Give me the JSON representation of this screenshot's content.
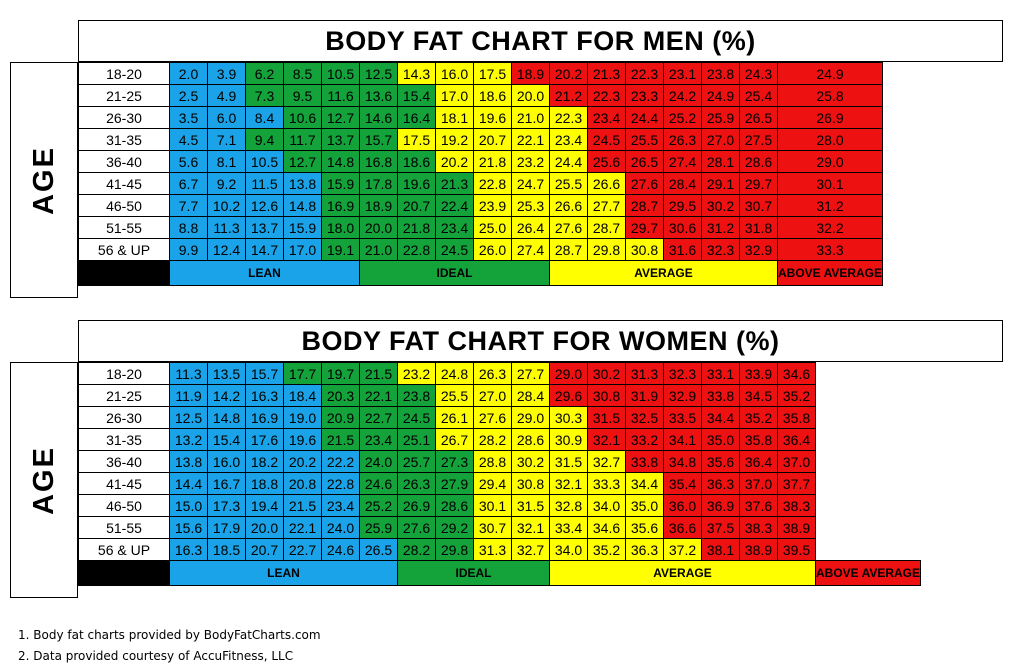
{
  "colors": {
    "lean": "#1aa3e8",
    "ideal": "#14a23a",
    "average": "#ffff00",
    "above_average": "#ee1111"
  },
  "charts": [
    {
      "title": "BODY FAT CHART FOR MEN (%)",
      "age_label": "AGE",
      "categories": [
        {
          "label": "LEAN",
          "span": 5,
          "key": "lean"
        },
        {
          "label": "IDEAL",
          "span": 5,
          "key": "ideal"
        },
        {
          "label": "AVERAGE",
          "span": 6,
          "key": "average"
        },
        {
          "label": "ABOVE AVERAGE",
          "span": 5,
          "key": "above_average"
        }
      ],
      "rows": [
        {
          "age": "18-20",
          "bounds": [
            2,
            6,
            9,
            11
          ],
          "values": [
            "2.0",
            "3.9",
            "6.2",
            "8.5",
            "10.5",
            "12.5",
            "14.3",
            "16.0",
            "17.5",
            "18.9",
            "20.2",
            "21.3",
            "22.3",
            "23.1",
            "23.8",
            "24.3",
            "24.9"
          ]
        },
        {
          "age": "21-25",
          "bounds": [
            2,
            7,
            10,
            11
          ],
          "values": [
            "2.5",
            "4.9",
            "7.3",
            "9.5",
            "11.6",
            "13.6",
            "15.4",
            "17.0",
            "18.6",
            "20.0",
            "21.2",
            "22.3",
            "23.3",
            "24.2",
            "24.9",
            "25.4",
            "25.8"
          ]
        },
        {
          "age": "26-30",
          "bounds": [
            3,
            7,
            11,
            11
          ],
          "values": [
            "3.5",
            "6.0",
            "8.4",
            "10.6",
            "12.7",
            "14.6",
            "16.4",
            "18.1",
            "19.6",
            "21.0",
            "22.3",
            "23.4",
            "24.4",
            "25.2",
            "25.9",
            "26.5",
            "26.9"
          ]
        },
        {
          "age": "31-35",
          "bounds": [
            2,
            6,
            11,
            11
          ],
          "values": [
            "4.5",
            "7.1",
            "9.4",
            "11.7",
            "13.7",
            "15.7",
            "17.5",
            "19.2",
            "20.7",
            "22.1",
            "23.4",
            "24.5",
            "25.5",
            "26.3",
            "27.0",
            "27.5",
            "28.0"
          ]
        },
        {
          "age": "36-40",
          "bounds": [
            3,
            7,
            11,
            11
          ],
          "values": [
            "5.6",
            "8.1",
            "10.5",
            "12.7",
            "14.8",
            "16.8",
            "18.6",
            "20.2",
            "21.8",
            "23.2",
            "24.4",
            "25.6",
            "26.5",
            "27.4",
            "28.1",
            "28.6",
            "29.0"
          ]
        },
        {
          "age": "41-45",
          "bounds": [
            4,
            8,
            12,
            12
          ],
          "values": [
            "6.7",
            "9.2",
            "11.5",
            "13.8",
            "15.9",
            "17.8",
            "19.6",
            "21.3",
            "22.8",
            "24.7",
            "25.5",
            "26.6",
            "27.6",
            "28.4",
            "29.1",
            "29.7",
            "30.1"
          ]
        },
        {
          "age": "46-50",
          "bounds": [
            4,
            8,
            12,
            12
          ],
          "values": [
            "7.7",
            "10.2",
            "12.6",
            "14.8",
            "16.9",
            "18.9",
            "20.7",
            "22.4",
            "23.9",
            "25.3",
            "26.6",
            "27.7",
            "28.7",
            "29.5",
            "30.2",
            "30.7",
            "31.2"
          ]
        },
        {
          "age": "51-55",
          "bounds": [
            4,
            8,
            12,
            12
          ],
          "values": [
            "8.8",
            "11.3",
            "13.7",
            "15.9",
            "18.0",
            "20.0",
            "21.8",
            "23.4",
            "25.0",
            "26.4",
            "27.6",
            "28.7",
            "29.7",
            "30.6",
            "31.2",
            "31.8",
            "32.2"
          ]
        },
        {
          "age": "56 & UP",
          "bounds": [
            4,
            8,
            13,
            13
          ],
          "values": [
            "9.9",
            "12.4",
            "14.7",
            "17.0",
            "19.1",
            "21.0",
            "22.8",
            "24.5",
            "26.0",
            "27.4",
            "28.7",
            "29.8",
            "30.8",
            "31.6",
            "32.3",
            "32.9",
            "33.3"
          ]
        }
      ]
    },
    {
      "title": "BODY FAT CHART FOR WOMEN (%)",
      "age_label": "AGE",
      "categories": [
        {
          "label": "LEAN",
          "span": 6,
          "key": "lean"
        },
        {
          "label": "IDEAL",
          "span": 4,
          "key": "ideal"
        },
        {
          "label": "AVERAGE",
          "span": 7,
          "key": "average"
        },
        {
          "label": "ABOVE AVERAGE",
          "span": 4,
          "key": "above_average"
        }
      ],
      "rows": [
        {
          "age": "18-20",
          "bounds": [
            3,
            6,
            10,
            11
          ],
          "values": [
            "11.3",
            "13.5",
            "15.7",
            "17.7",
            "19.7",
            "21.5",
            "23.2",
            "24.8",
            "26.3",
            "27.7",
            "29.0",
            "30.2",
            "31.3",
            "32.3",
            "33.1",
            "33.9",
            "34.6"
          ]
        },
        {
          "age": "21-25",
          "bounds": [
            4,
            7,
            10,
            11
          ],
          "values": [
            "11.9",
            "14.2",
            "16.3",
            "18.4",
            "20.3",
            "22.1",
            "23.8",
            "25.5",
            "27.0",
            "28.4",
            "29.6",
            "30.8",
            "31.9",
            "32.9",
            "33.8",
            "34.5",
            "35.2"
          ]
        },
        {
          "age": "26-30",
          "bounds": [
            4,
            7,
            11,
            11
          ],
          "values": [
            "12.5",
            "14.8",
            "16.9",
            "19.0",
            "20.9",
            "22.7",
            "24.5",
            "26.1",
            "27.6",
            "29.0",
            "30.3",
            "31.5",
            "32.5",
            "33.5",
            "34.4",
            "35.2",
            "35.8"
          ]
        },
        {
          "age": "31-35",
          "bounds": [
            4,
            7,
            11,
            11
          ],
          "values": [
            "13.2",
            "15.4",
            "17.6",
            "19.6",
            "21.5",
            "23.4",
            "25.1",
            "26.7",
            "28.2",
            "28.6",
            "30.9",
            "32.1",
            "33.2",
            "34.1",
            "35.0",
            "35.8",
            "36.4"
          ]
        },
        {
          "age": "36-40",
          "bounds": [
            5,
            8,
            12,
            12
          ],
          "values": [
            "13.8",
            "16.0",
            "18.2",
            "20.2",
            "22.2",
            "24.0",
            "25.7",
            "27.3",
            "28.8",
            "30.2",
            "31.5",
            "32.7",
            "33.8",
            "34.8",
            "35.6",
            "36.4",
            "37.0"
          ]
        },
        {
          "age": "41-45",
          "bounds": [
            5,
            8,
            13,
            13
          ],
          "values": [
            "14.4",
            "16.7",
            "18.8",
            "20.8",
            "22.8",
            "24.6",
            "26.3",
            "27.9",
            "29.4",
            "30.8",
            "32.1",
            "33.3",
            "34.4",
            "35.4",
            "36.3",
            "37.0",
            "37.7"
          ]
        },
        {
          "age": "46-50",
          "bounds": [
            5,
            8,
            13,
            13
          ],
          "values": [
            "15.0",
            "17.3",
            "19.4",
            "21.5",
            "23.4",
            "25.2",
            "26.9",
            "28.6",
            "30.1",
            "31.5",
            "32.8",
            "34.0",
            "35.0",
            "36.0",
            "36.9",
            "37.6",
            "38.3"
          ]
        },
        {
          "age": "51-55",
          "bounds": [
            5,
            8,
            13,
            13
          ],
          "values": [
            "15.6",
            "17.9",
            "20.0",
            "22.1",
            "24.0",
            "25.9",
            "27.6",
            "29.2",
            "30.7",
            "32.1",
            "33.4",
            "34.6",
            "35.6",
            "36.6",
            "37.5",
            "38.3",
            "38.9"
          ]
        },
        {
          "age": "56 & UP",
          "bounds": [
            6,
            8,
            14,
            14
          ],
          "values": [
            "16.3",
            "18.5",
            "20.7",
            "22.7",
            "24.6",
            "26.5",
            "28.2",
            "29.8",
            "31.3",
            "32.7",
            "34.0",
            "35.2",
            "36.3",
            "37.2",
            "38.1",
            "38.9",
            "39.5"
          ]
        }
      ]
    }
  ],
  "footnotes": [
    "1. Body fat charts provided by BodyFatCharts.com",
    "2. Data provided courtesy of AccuFitness, LLC"
  ]
}
